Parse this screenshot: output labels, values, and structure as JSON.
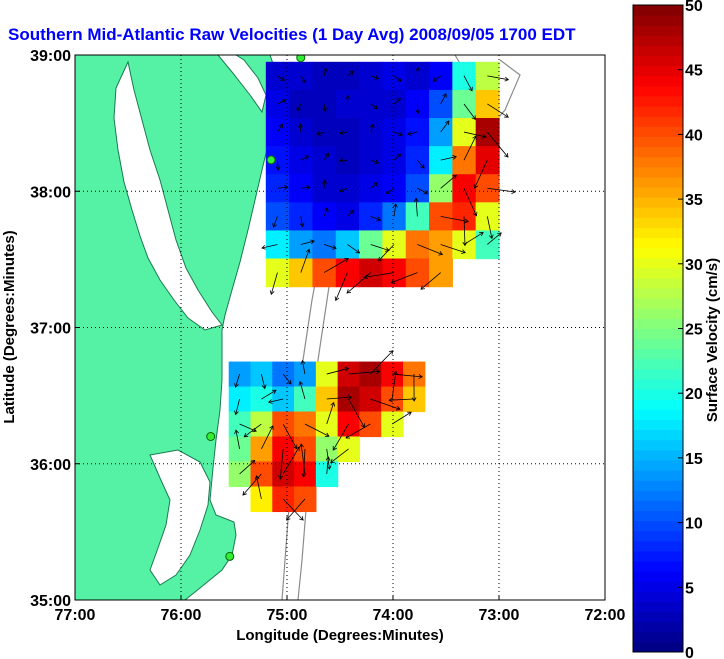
{
  "chart_data": {
    "type": "heatmap",
    "title": "Southern Mid-Atlantic Raw Velocities (1 Day Avg) 2008/09/05 1700 EDT",
    "xlabel": "Longitude (Degrees:Minutes)",
    "ylabel": "Latitude (Degrees:Minutes)",
    "colorbar_label": "Surface Velocity (cm/s)",
    "xlim": [
      -77,
      -72
    ],
    "ylim": [
      35,
      39
    ],
    "x_ticks": [
      {
        "value": -77,
        "label": "77:00"
      },
      {
        "value": -76,
        "label": "76:00"
      },
      {
        "value": -75,
        "label": "75:00"
      },
      {
        "value": -74,
        "label": "74:00"
      },
      {
        "value": -73,
        "label": "73:00"
      },
      {
        "value": -72,
        "label": "72:00"
      }
    ],
    "y_ticks": [
      {
        "value": 35,
        "label": "35:00"
      },
      {
        "value": 36,
        "label": "36:00"
      },
      {
        "value": 37,
        "label": "37:00"
      },
      {
        "value": 38,
        "label": "38:00"
      },
      {
        "value": 39,
        "label": "39:00"
      }
    ],
    "grid": true,
    "colorbar": {
      "min": 0,
      "max": 50,
      "ticks": [
        {
          "value": 0,
          "label": "0"
        },
        {
          "value": 5,
          "label": "5"
        },
        {
          "value": 10,
          "label": "10"
        },
        {
          "value": 15,
          "label": "15"
        },
        {
          "value": 20,
          "label": "20"
        },
        {
          "value": 25,
          "label": "25"
        },
        {
          "value": 30,
          "label": "30"
        },
        {
          "value": 35,
          "label": "35"
        },
        {
          "value": 40,
          "label": "40"
        },
        {
          "value": 45,
          "label": "45"
        },
        {
          "value": 50,
          "label": "50"
        }
      ],
      "colormap": "jet"
    },
    "land_color": "#55f2a6",
    "sites": [
      {
        "lon": -74.87,
        "lat": 38.98
      },
      {
        "lon": -75.15,
        "lat": 38.23
      },
      {
        "lon": -75.72,
        "lat": 36.2
      },
      {
        "lon": -75.54,
        "lat": 35.32
      }
    ],
    "regions": [
      {
        "lon_range": [
          -75.2,
          -73.0
        ],
        "lat_range": [
          37.3,
          38.95
        ],
        "speed_grid": [
          [
            4,
            4,
            3,
            3,
            4,
            5,
            4,
            6,
            20,
            28
          ],
          [
            5,
            3,
            3,
            4,
            4,
            4,
            6,
            10,
            24,
            34
          ],
          [
            6,
            4,
            3,
            3,
            4,
            5,
            7,
            14,
            30,
            48
          ],
          [
            7,
            5,
            4,
            3,
            4,
            5,
            8,
            18,
            38,
            45
          ],
          [
            8,
            6,
            4,
            4,
            5,
            6,
            10,
            26,
            44,
            40
          ],
          [
            10,
            8,
            6,
            5,
            8,
            12,
            22,
            40,
            42,
            30
          ],
          [
            18,
            14,
            12,
            16,
            24,
            30,
            38,
            36,
            30,
            22
          ],
          [
            30,
            34,
            40,
            44,
            46,
            44,
            40,
            36,
            0,
            0
          ]
        ]
      },
      {
        "lon_range": [
          -75.55,
          -73.7
        ],
        "lat_range": [
          35.65,
          36.75
        ],
        "speed_grid": [
          [
            14,
            16,
            12,
            14,
            30,
            46,
            48,
            44,
            38
          ],
          [
            18,
            20,
            16,
            22,
            34,
            48,
            46,
            40,
            34
          ],
          [
            22,
            28,
            40,
            38,
            30,
            44,
            40,
            30,
            0
          ],
          [
            24,
            36,
            44,
            40,
            26,
            30,
            0,
            0,
            0
          ],
          [
            26,
            40,
            46,
            44,
            20,
            0,
            0,
            0,
            0
          ],
          [
            0,
            32,
            42,
            40,
            0,
            0,
            0,
            0,
            0
          ]
        ]
      }
    ]
  }
}
